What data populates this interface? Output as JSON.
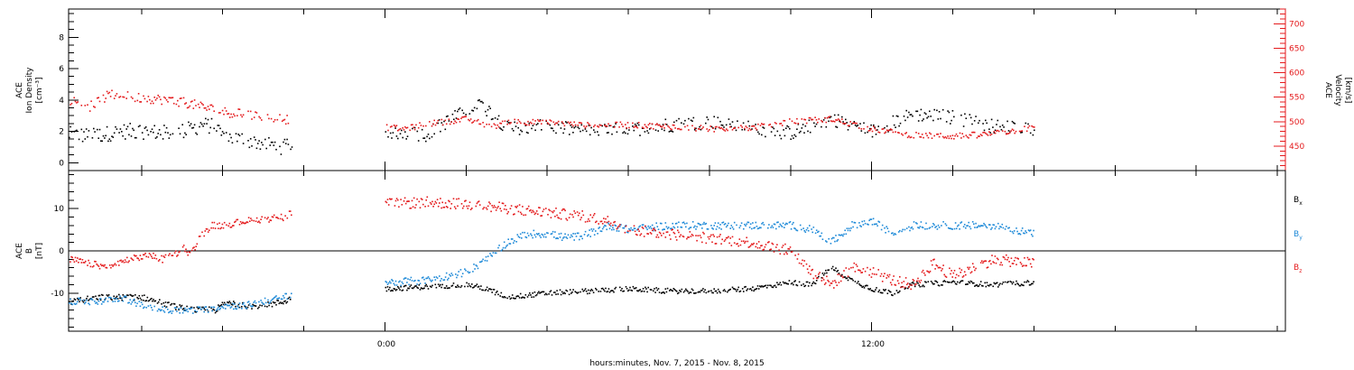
{
  "colors": {
    "black": "#000000",
    "red": "#e41a1c",
    "blue": "#1f8ad8"
  },
  "xaxis": {
    "title": "hours:minutes, Nov.  7, 2015 - Nov.  8, 2015",
    "ticks": [
      {
        "t": 0,
        "label": "0:00"
      },
      {
        "t": 12,
        "label": "12:00"
      }
    ],
    "range": [
      -7.8,
      22.2
    ]
  },
  "chart_data": [
    {
      "type": "scatter",
      "panel": "top",
      "left_axis": {
        "label_lines": [
          "ACE",
          "Ion Density",
          "[cm⁻³]"
        ],
        "ticks": [
          "0",
          "2",
          "4",
          "6",
          "8"
        ],
        "range": [
          -0.5,
          9.8
        ]
      },
      "right_axis": {
        "label_lines": [
          "ACE",
          "Velocity",
          "[km/s]"
        ],
        "ticks": [
          "450",
          "500",
          "550",
          "600",
          "650",
          "700"
        ],
        "range": [
          400,
          730
        ]
      },
      "series": [
        {
          "id": "density",
          "color": "#000000",
          "axis": "left",
          "segments": [
            {
              "t": [
                -7.8,
                -7.2,
                -6.5,
                -6.0,
                -5.5,
                -5.0,
                -4.5,
                -4.2,
                -3.9,
                -3.5,
                -3.0,
                -2.5,
                -2.3
              ],
              "v": [
                1.8,
                1.7,
                2.0,
                2.0,
                1.9,
                2.0,
                2.4,
                2.3,
                1.6,
                1.5,
                1.2,
                1.0,
                1.0
              ],
              "noise": 0.5
            },
            {
              "t": [
                0,
                1.0,
                1.5,
                2.0,
                2.3,
                2.6,
                3.0,
                4.0,
                5.0,
                6.0,
                7.0,
                8.0,
                9.0,
                10.0,
                11.0,
                12.0,
                13.0,
                14.0,
                15.0,
                16.0
              ],
              "v": [
                2.0,
                1.8,
                2.6,
                3.3,
                3.8,
                3.2,
                2.2,
                2.3,
                2.0,
                2.1,
                2.4,
                2.6,
                2.2,
                1.9,
                2.8,
                2.0,
                3.1,
                2.9,
                2.3,
                2.2
              ],
              "noise": 0.45
            }
          ]
        },
        {
          "id": "velocity",
          "color": "#e41a1c",
          "axis": "right",
          "segments": [
            {
              "t": [
                -7.8,
                -7.3,
                -6.8,
                -6.2,
                -5.5,
                -5.0,
                -4.5,
                -4.0,
                -3.5,
                -3.0,
                -2.5,
                -2.3
              ],
              "v": [
                545,
                530,
                555,
                550,
                545,
                540,
                530,
                520,
                515,
                510,
                505,
                505
              ],
              "noise": 10
            },
            {
              "t": [
                0,
                0.5,
                1.0,
                1.5,
                2.0,
                2.3,
                2.6,
                3.0,
                4.0,
                5.0,
                6.0,
                7.0,
                8.0,
                9.0,
                10.0,
                11.0,
                12.0,
                13.0,
                14.0,
                15.0,
                16.0
              ],
              "v": [
                488,
                485,
                495,
                500,
                505,
                498,
                488,
                500,
                498,
                492,
                493,
                490,
                485,
                487,
                500,
                505,
                485,
                472,
                470,
                475,
                488
              ],
              "noise": 6
            }
          ]
        }
      ]
    },
    {
      "type": "scatter",
      "panel": "bottom",
      "left_axis": {
        "label_lines": [
          "ACE",
          "B",
          "[nT]"
        ],
        "ticks": [
          "-10",
          "0",
          "10"
        ],
        "range": [
          -19,
          19
        ]
      },
      "legend": [
        {
          "text": "B",
          "sub": "x",
          "color": "#000000"
        },
        {
          "text": "B",
          "sub": "y",
          "color": "#1f8ad8"
        },
        {
          "text": "B",
          "sub": "z",
          "color": "#e41a1c"
        }
      ],
      "series": [
        {
          "id": "Bx",
          "color": "#000000",
          "segments": [
            {
              "t": [
                -7.8,
                -7.0,
                -6.0,
                -5.3,
                -4.8,
                -4.2,
                -3.9,
                -3.5,
                -3.0,
                -2.5,
                -2.3
              ],
              "v": [
                -12,
                -11,
                -11,
                -13,
                -14,
                -14,
                -12,
                -13,
                -13,
                -12,
                -11
              ],
              "noise": 0.7
            },
            {
              "t": [
                0,
                1.0,
                2.0,
                2.5,
                3.0,
                4.0,
                5.0,
                6.0,
                7.0,
                8.0,
                9.0,
                10.0,
                10.5,
                11.0,
                11.5,
                12.0,
                12.5,
                13.0,
                14.0,
                15.0,
                16.0
              ],
              "v": [
                -9,
                -8.5,
                -8,
                -9,
                -11,
                -10,
                -9.5,
                -9,
                -9.5,
                -9.5,
                -9,
                -7.5,
                -8,
                -4,
                -7,
                -9,
                -10,
                -8,
                -7.5,
                -8,
                -7.5
              ],
              "noise": 0.6
            }
          ]
        },
        {
          "id": "By",
          "color": "#1f8ad8",
          "segments": [
            {
              "t": [
                -7.8,
                -7.0,
                -6.5,
                -6.0,
                -5.5,
                -5.0,
                -4.5,
                -4.0,
                -3.5,
                -3.0,
                -2.5,
                -2.3
              ],
              "v": [
                -12,
                -12,
                -11,
                -13,
                -14,
                -14,
                -14,
                -13,
                -13,
                -12,
                -11,
                -10
              ],
              "noise": 0.8
            },
            {
              "t": [
                0,
                1.0,
                2.0,
                2.5,
                3.0,
                3.5,
                4.0,
                4.5,
                5.0,
                5.5,
                6.0,
                7.0,
                8.0,
                9.0,
                10.0,
                10.5,
                11.0,
                11.5,
                12.0,
                12.5,
                13.0,
                14.0,
                15.0,
                16.0
              ],
              "v": [
                -7.5,
                -7,
                -5,
                -2,
                2,
                4,
                4,
                3,
                4,
                6,
                5,
                6,
                6,
                6,
                6,
                5,
                2,
                6,
                7,
                4,
                6,
                6,
                6,
                4
              ],
              "noise": 0.9
            }
          ]
        },
        {
          "id": "Bz",
          "color": "#e41a1c",
          "segments": [
            {
              "t": [
                -7.8,
                -7.3,
                -6.8,
                -6.3,
                -5.8,
                -5.5,
                -5.2,
                -5.0,
                -4.8,
                -4.6,
                -4.3,
                -4.0,
                -3.5,
                -3.0,
                -2.5,
                -2.3
              ],
              "v": [
                -2,
                -3,
                -4,
                -2,
                -1,
                -2,
                -1,
                1,
                -1,
                3,
                6,
                6,
                7,
                7.5,
                8,
                9
              ],
              "noise": 0.8
            },
            {
              "t": [
                0,
                1.0,
                2.0,
                3.0,
                4.0,
                5.0,
                5.5,
                6.0,
                7.0,
                8.0,
                9.0,
                10.0,
                10.5,
                11.0,
                11.5,
                12.0,
                12.5,
                13.0,
                13.5,
                14.0,
                15.0,
                16.0
              ],
              "v": [
                11,
                11.5,
                11,
                10,
                9,
                8,
                7,
                5,
                4,
                3,
                2,
                0,
                -5,
                -8,
                -4,
                -5,
                -7,
                -8,
                -3,
                -6,
                -2,
                -3
              ],
              "noise": 1.3
            }
          ]
        }
      ]
    }
  ]
}
